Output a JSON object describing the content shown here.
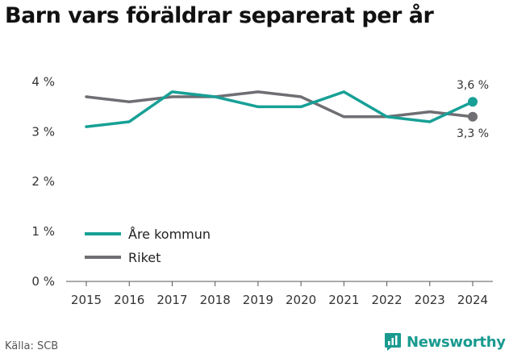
{
  "title": "Barn vars föräldrar separerat per år",
  "source": "Källa: SCB",
  "brand": {
    "name": "Newsworthy",
    "icon": "newsworthy-chart-bubble-icon",
    "color": "#1a9a8f"
  },
  "chart_data": {
    "type": "line",
    "x": [
      "2015",
      "2016",
      "2017",
      "2018",
      "2019",
      "2020",
      "2021",
      "2022",
      "2023",
      "2024"
    ],
    "series": [
      {
        "name": "Åre kommun",
        "color": "#17a096",
        "values": [
          3.1,
          3.2,
          3.8,
          3.7,
          3.5,
          3.5,
          3.8,
          3.3,
          3.2,
          3.6
        ]
      },
      {
        "name": "Riket",
        "color": "#6e6e73",
        "values": [
          3.7,
          3.6,
          3.7,
          3.7,
          3.8,
          3.7,
          3.3,
          3.3,
          3.4,
          3.3
        ]
      }
    ],
    "end_labels": [
      "3,6 %",
      "3,3 %"
    ],
    "y_ticks": [
      {
        "value": 0,
        "label": "0 %"
      },
      {
        "value": 1,
        "label": "1 %"
      },
      {
        "value": 2,
        "label": "2 %"
      },
      {
        "value": 3,
        "label": "3 %"
      },
      {
        "value": 4,
        "label": "4 %"
      }
    ],
    "ylim": [
      0,
      4.25
    ],
    "grid": false,
    "legend": "bottom-left"
  }
}
